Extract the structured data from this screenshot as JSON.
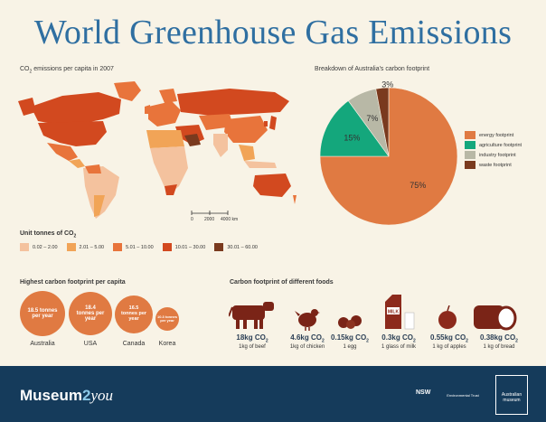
{
  "title": "World Greenhouse Gas Emissions",
  "map": {
    "label_main": "CO",
    "label_sub": "2",
    "label_rest": " emissions per capita in 2007",
    "scale_labels": [
      "0",
      "2000",
      "4000 km"
    ]
  },
  "legend": {
    "title_main": "Unit tonnes of CO",
    "title_sub": "2",
    "items": [
      {
        "label": "0.02 – 2.00",
        "color": "#f4c29e"
      },
      {
        "label": "2.01 – 5.00",
        "color": "#f1a457"
      },
      {
        "label": "5.01 – 10.00",
        "color": "#e8743b"
      },
      {
        "label": "10.01 – 30.00",
        "color": "#d2491f"
      },
      {
        "label": "30.01 – 60.00",
        "color": "#7a3a1e"
      }
    ]
  },
  "chart_data": {
    "type": "pie",
    "title": "Breakdown of Australia's carbon footprint",
    "slices": [
      {
        "label": "energy footprint",
        "value": 75,
        "display": "75%",
        "color": "#e07a42"
      },
      {
        "label": "agriculture footprint",
        "value": 15,
        "display": "15%",
        "color": "#14a77c"
      },
      {
        "label": "industry footprint",
        "value": 7,
        "display": "7%",
        "color": "#b8b8a6"
      },
      {
        "label": "waste footprint",
        "value": 3,
        "display": "3%",
        "color": "#7a3a1e"
      }
    ],
    "legend_placement": "right"
  },
  "highest": {
    "title": "Highest carbon footprint per capita",
    "countries": [
      {
        "name": "Australia",
        "value_text": "18.5 tonnes per year",
        "value": 18.5
      },
      {
        "name": "USA",
        "value_text": "18.4 tonnes per year",
        "value": 18.4
      },
      {
        "name": "Canada",
        "value_text": "16.5 tonnes per year",
        "value": 16.5
      },
      {
        "name": "Korea",
        "value_text": "10.3 tonnes per year",
        "value": 10.3
      }
    ]
  },
  "foods": {
    "title": "Carbon footprint of different foods",
    "items": [
      {
        "value": "18kg CO",
        "sub": "2",
        "desc": "1kg of beef",
        "icon": "cow-icon"
      },
      {
        "value": "4.6kg CO",
        "sub": "2",
        "desc": "1kg of chicken",
        "icon": "chicken-icon"
      },
      {
        "value": "0.15kg CO",
        "sub": "2",
        "desc": "1 egg",
        "icon": "egg-icon"
      },
      {
        "value": "0.3kg CO",
        "sub": "2",
        "desc": "1 glass of milk",
        "icon": "milk-icon",
        "carton_text": "MILK"
      },
      {
        "value": "0.55kg CO",
        "sub": "2",
        "desc": "1 kg of apples",
        "icon": "apple-icon"
      },
      {
        "value": "0.38kg CO",
        "sub": "2",
        "desc": "1 kg of bread",
        "icon": "bread-icon"
      }
    ]
  },
  "footer": {
    "brand_a": "Museum",
    "brand_b": "2",
    "brand_c": "you",
    "logo_nsw": "NSW",
    "logo_env": "Environmental Trust",
    "logo_am_line1": "Australian",
    "logo_am_line2": "museum"
  }
}
